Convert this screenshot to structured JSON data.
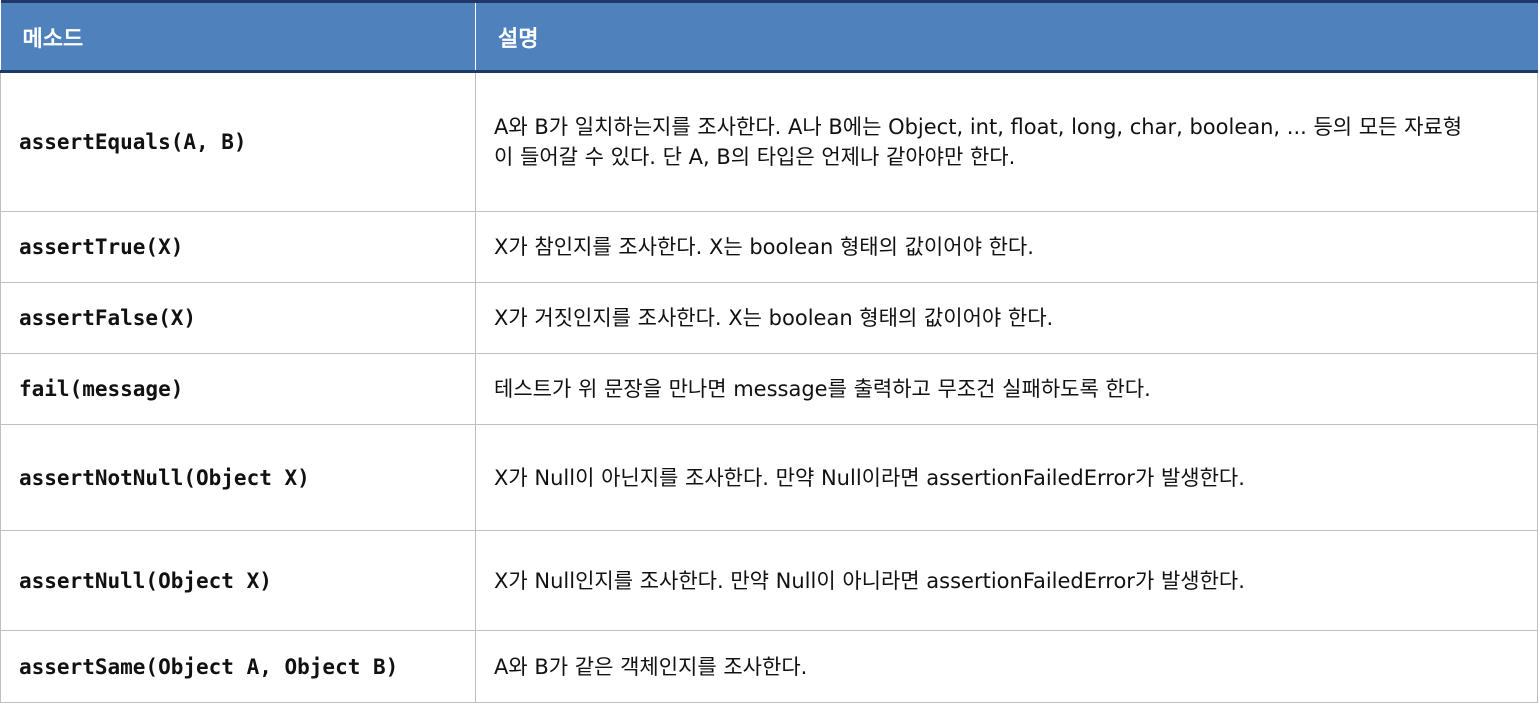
{
  "table": {
    "headers": [
      "메소드",
      "설명"
    ],
    "rows": [
      {
        "method": "assertEquals(A, B)",
        "description": "A와 B가 일치하는지를 조사한다. A나 B에는 Object, int, float, long, char, boolean, ... 등의 모든 자료형이 들어갈 수 있다. 단 A, B의 타입은 언제나 같아야만 한다."
      },
      {
        "method": "assertTrue(X)",
        "description": "X가 참인지를 조사한다. X는 boolean 형태의 값이어야 한다."
      },
      {
        "method": "assertFalse(X)",
        "description": "X가 거짓인지를 조사한다. X는 boolean 형태의 값이어야 한다."
      },
      {
        "method": "fail(message)",
        "description": "테스트가 위 문장을 만나면 message를 출력하고 무조건 실패하도록 한다."
      },
      {
        "method": "assertNotNull(Object X)",
        "description": "X가 Null이 아닌지를 조사한다. 만약 Null이라면 assertionFailedError가 발생한다."
      },
      {
        "method": "assertNull(Object X)",
        "description": "X가 Null인지를 조사한다. 만약 Null이 아니라면 assertionFailedError가 발생한다."
      },
      {
        "method": "assertSame(Object A, Object B)",
        "description": "A와 B가 같은 객체인지를 조사한다."
      }
    ]
  },
  "colors": {
    "header_bg": "#4f81bd",
    "header_text": "#ffffff",
    "header_rule": "#1f3864",
    "cell_border": "#bfbfbf"
  }
}
